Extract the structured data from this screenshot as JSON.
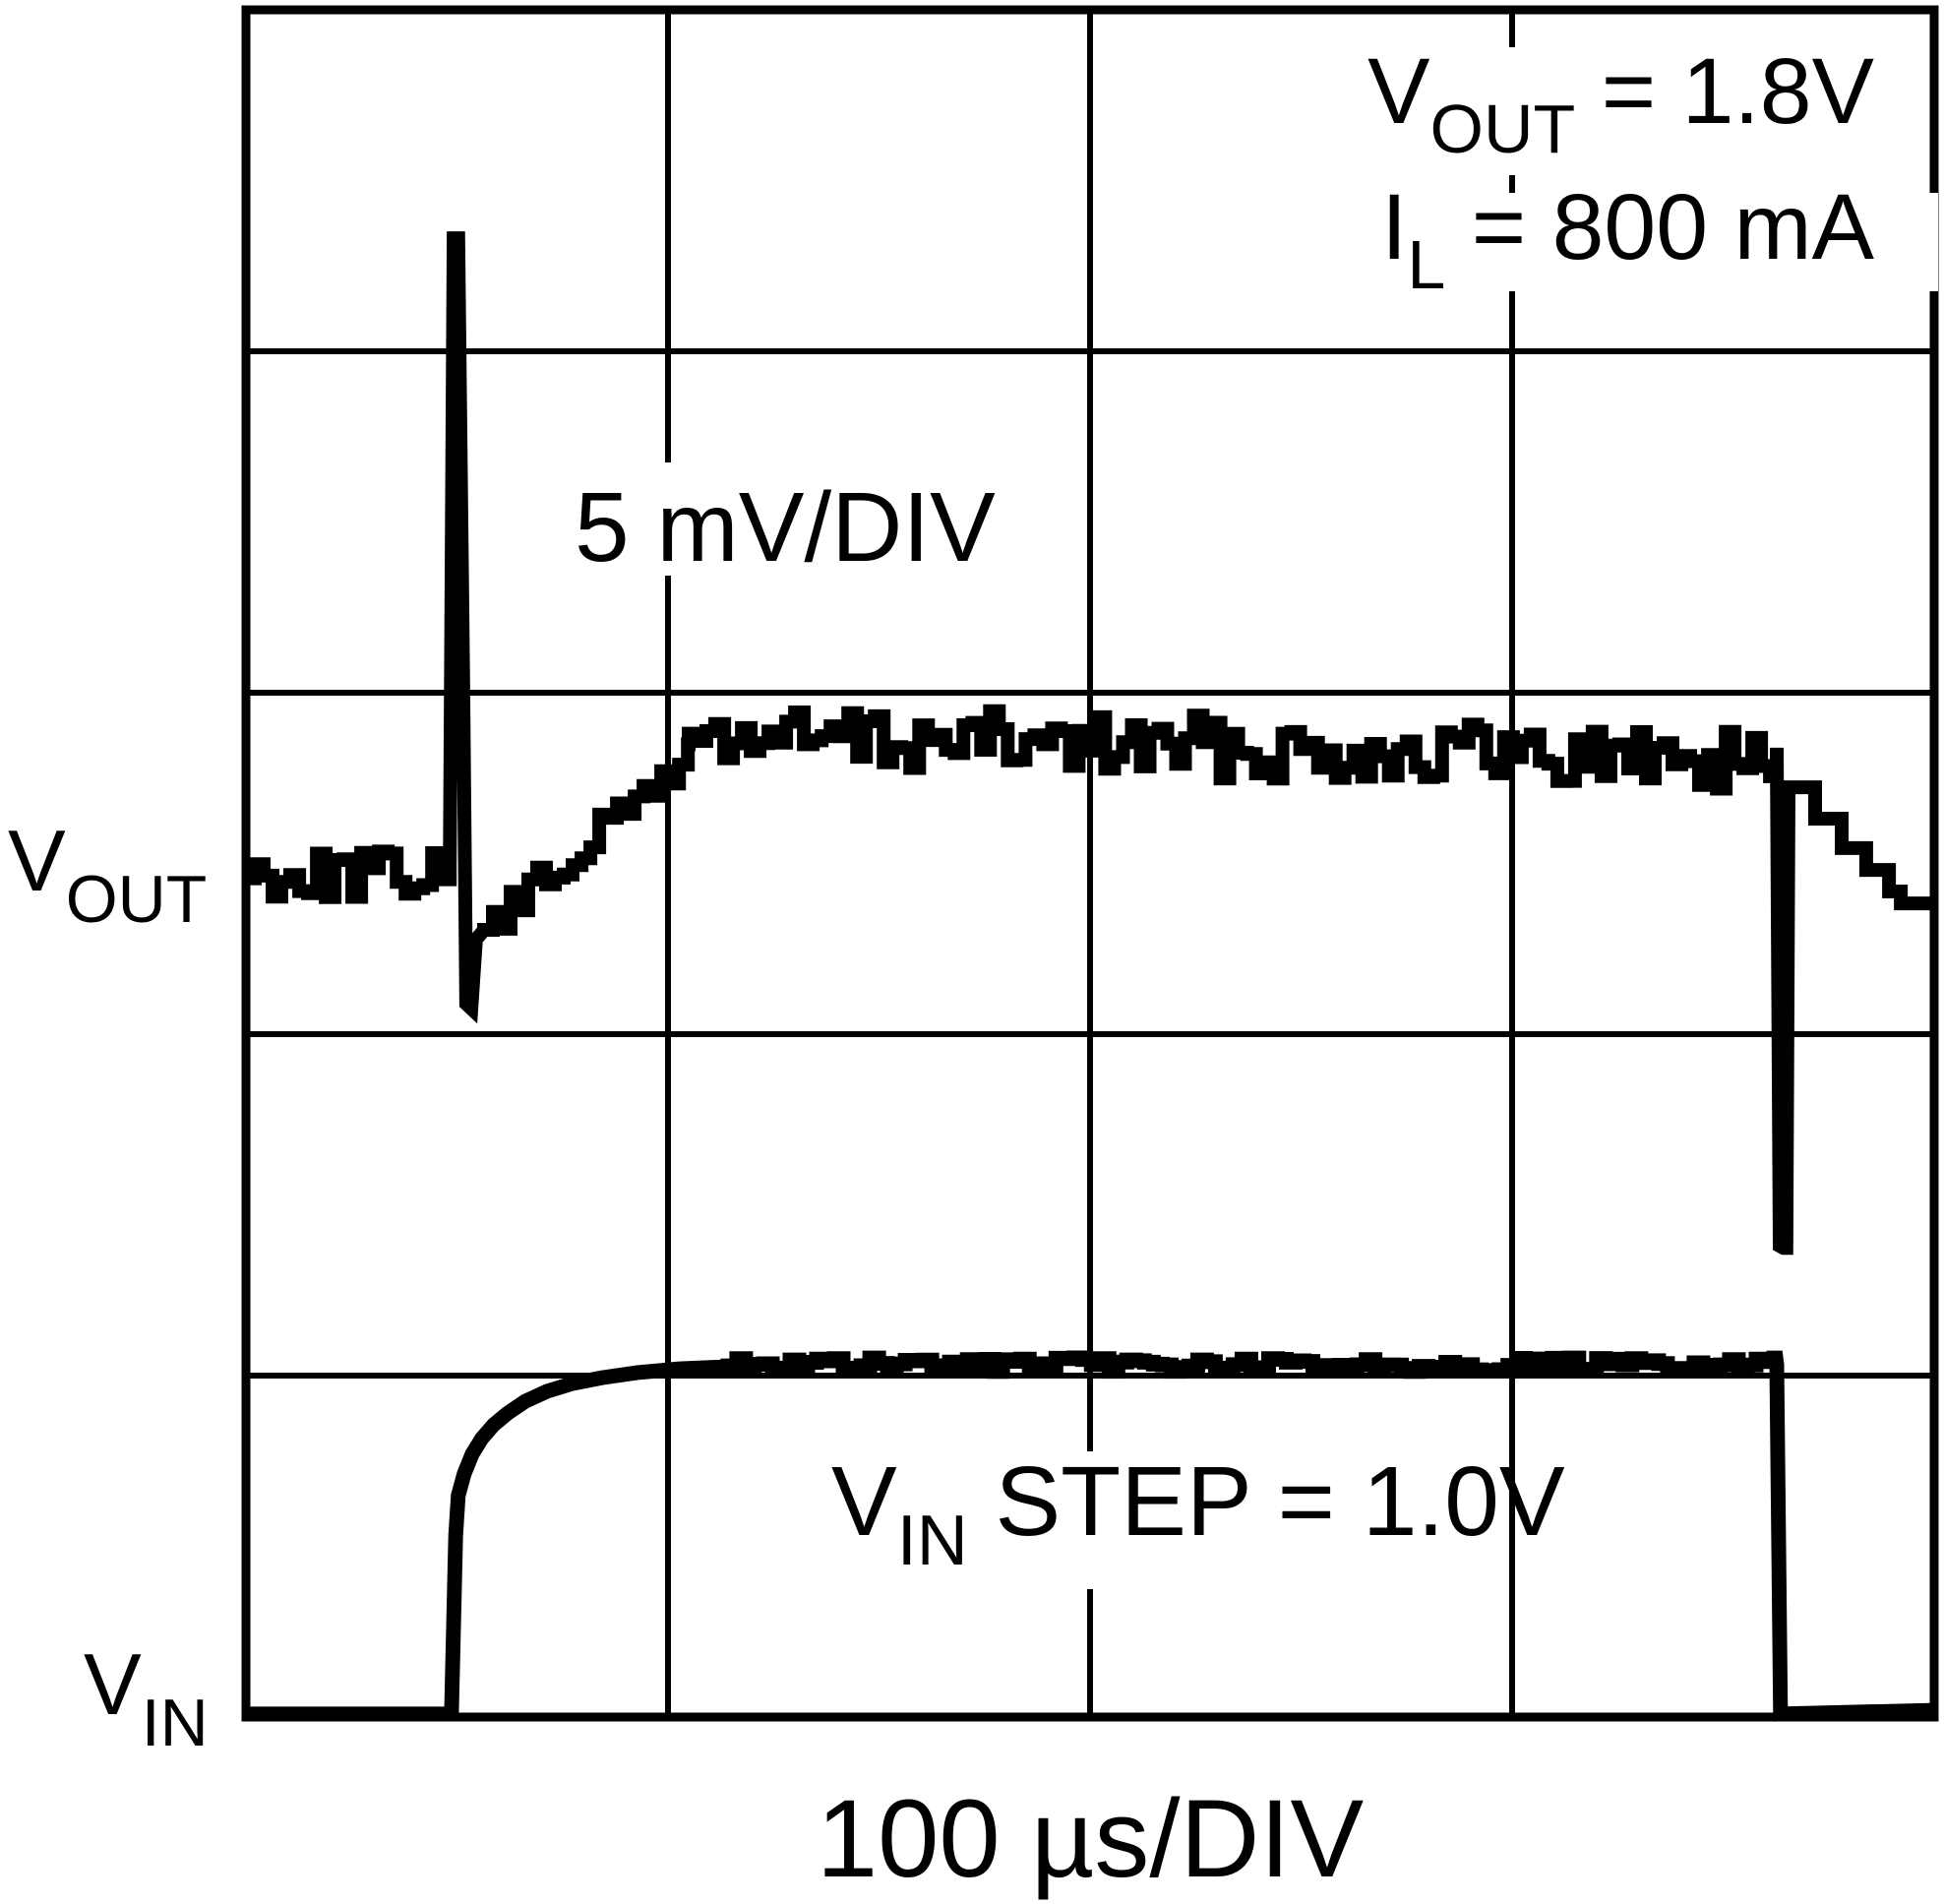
{
  "figure": {
    "conditions": {
      "line1": {
        "main": "V",
        "sub": "OUT",
        "rest": " = 1.8V"
      },
      "line2": {
        "main": "I",
        "sub": "L",
        "rest": " = 800 mA"
      }
    },
    "scale_label": "5 mV/DIV",
    "step_label": {
      "main": "V",
      "sub": "IN",
      "rest": " STEP = 1.0V"
    },
    "trace_labels": {
      "vout": {
        "main": "V",
        "sub": "OUT"
      },
      "vin": {
        "main": "V",
        "sub": "IN"
      }
    },
    "colors": {
      "trace": "#000000",
      "grid": "#000000",
      "background": "#ffffff"
    }
  },
  "chart_data": {
    "type": "line",
    "subtype": "oscilloscope",
    "title": "",
    "x_axis": {
      "label": "100 µs/DIV",
      "divisions": 4,
      "us_per_div": 100
    },
    "y_axis": {
      "divisions": 5,
      "vout_scale_label": "5 mV/DIV",
      "vout_mv_per_div": 5
    },
    "conditions": {
      "vout_v": 1.8,
      "il_ma": 800,
      "vin_step_v": 1.0
    },
    "grid": true,
    "noise_seed": 7,
    "traces": [
      {
        "name": "VOUT",
        "stroke_px": 14,
        "segments": [
          {
            "type": "noise",
            "x0": 0.0,
            "x1": 0.483,
            "y0": 2.53,
            "y1": 2.53,
            "amp": 0.069
          },
          {
            "type": "points",
            "pts": [
              [
                0.483,
                2.507
              ],
              [
                0.492,
                0.669
              ],
              [
                0.503,
                0.669
              ],
              [
                0.515,
                1.989
              ],
              [
                0.522,
                2.911
              ],
              [
                0.534,
                2.925
              ],
              [
                0.545,
                2.723
              ],
              [
                0.564,
                2.695
              ]
            ]
          },
          {
            "type": "noise",
            "x0": 0.564,
            "x1": 1.049,
            "y0": 2.695,
            "y1": 2.16,
            "amp": 0.052
          },
          {
            "type": "noise",
            "x0": 1.049,
            "x1": 3.627,
            "y0": 2.127,
            "y1": 2.196,
            "amp": 0.092
          },
          {
            "type": "points",
            "pts": [
              [
                3.627,
                2.161
              ],
              [
                3.634,
                3.62
              ],
              [
                3.643,
                3.626
              ],
              [
                3.65,
                3.626
              ],
              [
                3.655,
                2.277
              ],
              [
                3.718,
                2.277
              ],
              [
                3.718,
                2.369
              ],
              [
                3.781,
                2.369
              ],
              [
                3.781,
                2.455
              ],
              [
                3.839,
                2.455
              ],
              [
                3.839,
                2.519
              ],
              [
                3.893,
                2.519
              ],
              [
                3.893,
                2.582
              ],
              [
                3.921,
                2.582
              ],
              [
                3.921,
                2.617
              ],
              [
                4.0,
                2.617
              ]
            ]
          }
        ]
      },
      {
        "name": "VIN",
        "stroke_px": 15,
        "segments": [
          {
            "type": "points",
            "pts": [
              [
                0,
                4.991
              ],
              [
                0.487,
                4.991
              ],
              [
                0.497,
                4.467
              ],
              [
                0.503,
                4.351
              ],
              [
                0.517,
                4.288
              ],
              [
                0.536,
                4.23
              ],
              [
                0.559,
                4.184
              ],
              [
                0.587,
                4.144
              ],
              [
                0.62,
                4.11
              ],
              [
                0.662,
                4.075
              ],
              [
                0.713,
                4.046
              ],
              [
                0.774,
                4.023
              ],
              [
                0.844,
                4.006
              ],
              [
                0.928,
                3.991
              ],
              [
                1.026,
                3.98
              ],
              [
                1.142,
                3.974
              ]
            ]
          },
          {
            "type": "noise",
            "x0": 1.142,
            "x1": 3.625,
            "y0": 3.968,
            "y1": 3.968,
            "amp": 0.02
          },
          {
            "type": "points",
            "pts": [
              [
                3.627,
                3.968
              ],
              [
                3.636,
                4.991
              ],
              [
                4.0,
                4.98
              ]
            ]
          }
        ]
      }
    ]
  }
}
